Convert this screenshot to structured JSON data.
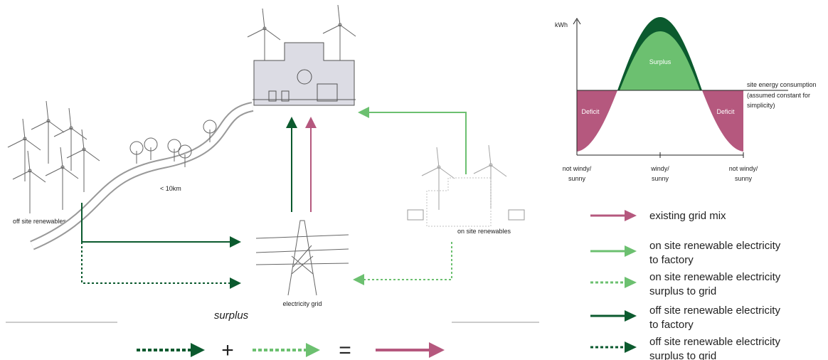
{
  "diagram": {
    "labels": {
      "off_site": "off site renewables",
      "distance": "< 10km",
      "grid": "electricity grid",
      "on_site": "on site renewables"
    },
    "equation": {
      "caption": "surplus",
      "plus": "+",
      "equals": "="
    },
    "chart": {
      "y_axis": "kWh",
      "surplus": "Surplus",
      "deficit_left": "Deficit",
      "deficit_right": "Deficit",
      "consumption": [
        "site energy consumption",
        "(assumed constant for",
        "simplicity)"
      ],
      "x_labels": [
        [
          "not windy/",
          "sunny"
        ],
        [
          "windy/",
          "sunny"
        ],
        [
          "not windy/",
          "sunny"
        ]
      ]
    },
    "legend": [
      [
        "existing grid mix"
      ],
      [
        "on site renewable electricity",
        "to factory"
      ],
      [
        "on site renewable electricity",
        "surplus to grid"
      ],
      [
        "off site renewable electricity",
        "to factory"
      ],
      [
        "off site renewable electricity",
        "surplus to grid"
      ]
    ]
  }
}
